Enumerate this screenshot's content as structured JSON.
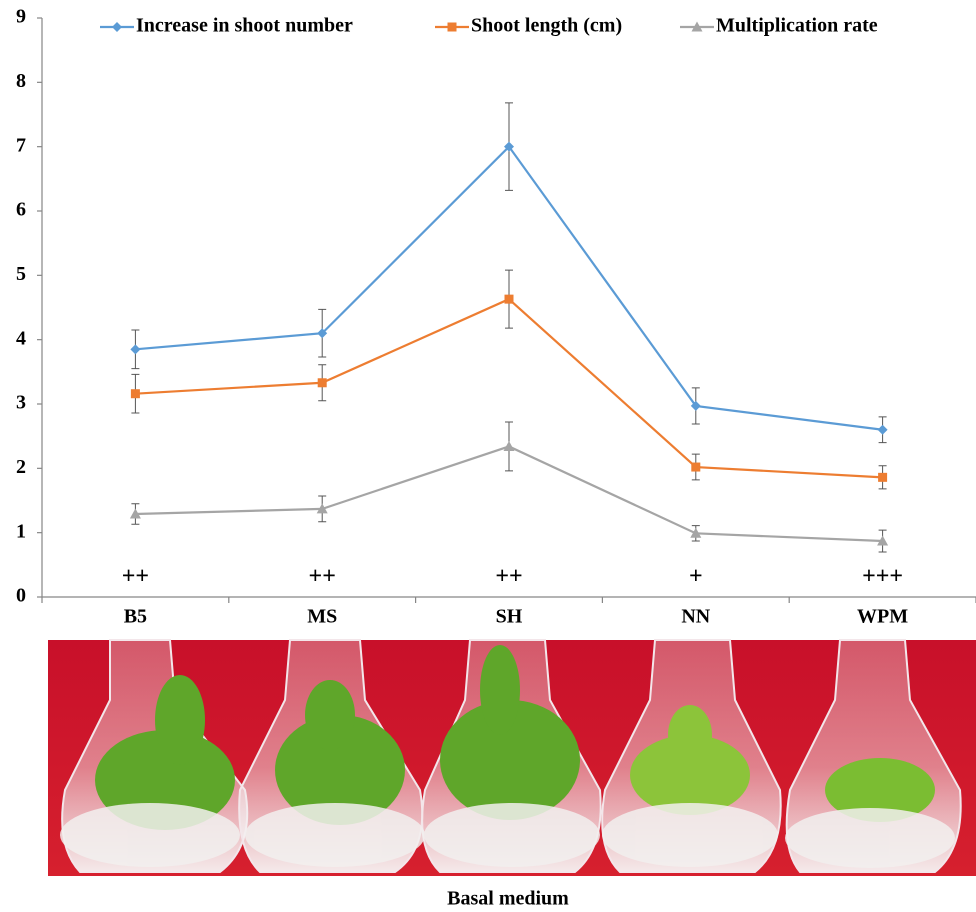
{
  "chart_data": {
    "type": "line",
    "categories": [
      "B5",
      "MS",
      "SH",
      "NN",
      "WPM"
    ],
    "series": [
      {
        "name": "Increase in shoot number",
        "color": "#5b9bd5",
        "marker": "diamond",
        "values": [
          3.85,
          4.1,
          7.0,
          2.97,
          2.6
        ],
        "errors": [
          0.3,
          0.37,
          0.68,
          0.28,
          0.2
        ]
      },
      {
        "name": "Shoot length (cm)",
        "color": "#ed7d31",
        "marker": "square",
        "values": [
          3.16,
          3.33,
          4.63,
          2.02,
          1.86
        ],
        "errors": [
          0.3,
          0.28,
          0.45,
          0.2,
          0.18
        ]
      },
      {
        "name": "Multiplication rate",
        "color": "#a5a5a5",
        "marker": "triangle",
        "values": [
          1.29,
          1.37,
          2.34,
          0.99,
          0.87
        ],
        "errors": [
          0.16,
          0.2,
          0.38,
          0.12,
          0.17
        ]
      }
    ],
    "annotations": [
      "++",
      "++",
      "++",
      "+",
      "+++"
    ],
    "xlabel": "Basal medium",
    "ylim": [
      0,
      9
    ],
    "yticks": [
      0,
      1,
      2,
      3,
      4,
      5,
      6,
      7,
      8,
      9
    ],
    "legend": "top"
  }
}
